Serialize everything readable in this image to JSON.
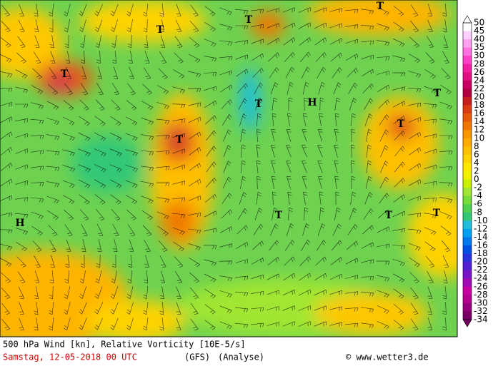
{
  "map": {
    "markers": [
      "T",
      "T",
      "T",
      "T",
      "T",
      "H",
      "T",
      "T",
      "T",
      "H",
      "T",
      "T",
      "T"
    ],
    "colorbar": {
      "labels": [
        50,
        45,
        40,
        35,
        30,
        28,
        26,
        24,
        22,
        20,
        18,
        16,
        14,
        12,
        10,
        8,
        6,
        4,
        2,
        0,
        -2,
        -4,
        -6,
        -8,
        -10,
        -12,
        -14,
        -16,
        -18,
        -20,
        -22,
        -24,
        -26,
        -28,
        -30,
        -32,
        -34
      ],
      "colors": [
        "#ffffff",
        "#ffd0ff",
        "#ffa0f0",
        "#ff70e0",
        "#ff40c8",
        "#f020a0",
        "#e01080",
        "#c80060",
        "#b00040",
        "#c81e1e",
        "#dc3c14",
        "#e85a0a",
        "#f07800",
        "#f89600",
        "#ffaa00",
        "#ffc000",
        "#ffd200",
        "#ffe600",
        "#f0f000",
        "#c8f000",
        "#a0e632",
        "#78dc3c",
        "#50d250",
        "#32c878",
        "#1ebedc",
        "#00a0f0",
        "#0078f0",
        "#0050e6",
        "#2832dc",
        "#5020d2",
        "#7814c8",
        "#a00ab4",
        "#c800a0",
        "#b4008c",
        "#96007d",
        "#780064"
      ]
    }
  },
  "footer": {
    "title": "500 hPa Wind [kn], Relative Vorticity [10E-5/s]",
    "date": "Samstag, 12-05-2018   00 UTC",
    "model": "(GFS)",
    "run": "(Analyse)",
    "copyright": "© www.wetter3.de"
  }
}
